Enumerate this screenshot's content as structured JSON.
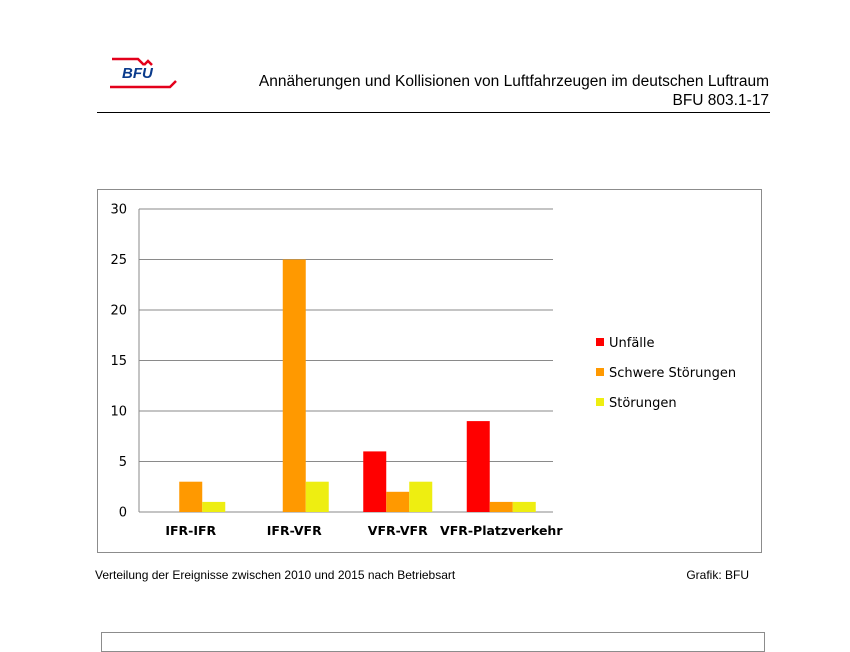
{
  "header": {
    "logo_text": "BFU",
    "title": "Annäherungen und Kollisionen von Luftfahrzeugen im deutschen Luftraum",
    "doc_number": "BFU 803.1-17"
  },
  "caption": {
    "text": "Verteilung der Ereignisse zwischen 2010 und 2015 nach Betriebsart",
    "source": "Grafik: BFU"
  },
  "colors": {
    "logo_red": "#e3001b",
    "logo_blue": "#0a3b8c"
  },
  "chart_data": {
    "type": "bar",
    "title": "",
    "xlabel": "",
    "ylabel": "",
    "categories": [
      "IFR-IFR",
      "IFR-VFR",
      "VFR-VFR",
      "VFR-Platzverkehr"
    ],
    "series": [
      {
        "name": "Unfälle",
        "color": "#ff0000",
        "values": [
          0,
          0,
          6,
          9
        ]
      },
      {
        "name": "Schwere Störungen",
        "color": "#ff9900",
        "values": [
          3,
          25,
          2,
          1
        ]
      },
      {
        "name": "Störungen",
        "color": "#eeee11",
        "values": [
          1,
          3,
          3,
          1
        ]
      }
    ],
    "ylim": [
      0,
      30
    ],
    "yticks": [
      0,
      5,
      10,
      15,
      20,
      25,
      30
    ],
    "grid": true,
    "legend": "right"
  }
}
